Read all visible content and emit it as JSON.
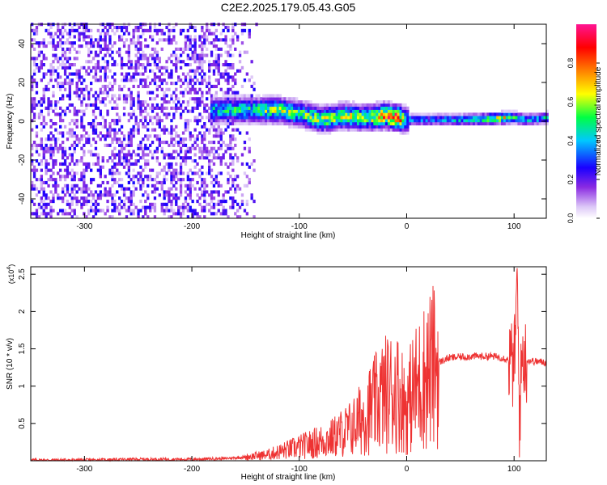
{
  "title": "C2E2.2025.179.05.43.G05",
  "chart_data": [
    {
      "type": "heatmap",
      "xlabel": "Height of straight line (km)",
      "ylabel": "Frequency (Hz)",
      "xlim": [
        -350,
        130
      ],
      "ylim": [
        -50,
        50
      ],
      "xticks": [
        -300,
        -200,
        -100,
        0,
        100
      ],
      "yticks": [
        -40,
        -20,
        0,
        20,
        40
      ],
      "colorbar": {
        "label": "Normalized spectral amplitude",
        "range": [
          0.0,
          1.0
        ],
        "ticks": [
          "0.0",
          "0.2",
          "0.4",
          "0.6",
          "0.8"
        ],
        "colors": [
          "#ffffff",
          "#dcc6f7",
          "#8a2be2",
          "#1a00ff",
          "#00c8ff",
          "#00ff44",
          "#ffff00",
          "#ff8000",
          "#ff0000",
          "#ff1493"
        ]
      },
      "ridge": {
        "description_points_x": [
          -180,
          -150,
          -120,
          -100,
          -80,
          -60,
          -40,
          -20,
          -10,
          0,
          20,
          60,
          90,
          100,
          110,
          130
        ],
        "center_freq": [
          5,
          5,
          5,
          3,
          0,
          2,
          1,
          2,
          1,
          0,
          0,
          0,
          1,
          1,
          0,
          1
        ],
        "peak_amplitude": [
          0.45,
          0.5,
          0.6,
          0.55,
          0.6,
          0.65,
          0.6,
          0.8,
          0.95,
          0.4,
          0.35,
          0.45,
          0.75,
          0.5,
          0.4,
          0.45
        ]
      }
    },
    {
      "type": "line",
      "xlabel": "Height of straight line (km)",
      "ylabel": "SNR (10 * v/v)",
      "yscale_note": "(x10",
      "yscale_exp": "4",
      "xlim": [
        -350,
        130
      ],
      "ylim": [
        0,
        2.6
      ],
      "xticks": [
        -300,
        -200,
        -100,
        0,
        100
      ],
      "yticks": [
        0.5,
        1.0,
        1.5,
        2.0,
        2.5
      ],
      "series": [
        {
          "color": "#ee3333",
          "x": [
            -350,
            -300,
            -250,
            -200,
            -170,
            -150,
            -130,
            -110,
            -90,
            -70,
            -50,
            -40,
            -30,
            -20,
            -10,
            -5,
            0,
            5,
            10,
            20,
            30,
            40,
            60,
            80,
            90,
            95,
            100,
            103,
            105,
            108,
            110,
            120,
            130
          ],
          "y": [
            0.01,
            0.01,
            0.02,
            0.02,
            0.03,
            0.05,
            0.08,
            0.15,
            0.22,
            0.3,
            0.45,
            0.6,
            0.75,
            0.9,
            0.95,
            0.85,
            0.7,
            0.9,
            1.0,
            1.2,
            1.32,
            1.38,
            1.4,
            1.4,
            1.38,
            1.35,
            1.25,
            2.4,
            0.6,
            1.5,
            1.35,
            1.33,
            1.32
          ]
        }
      ]
    }
  ]
}
